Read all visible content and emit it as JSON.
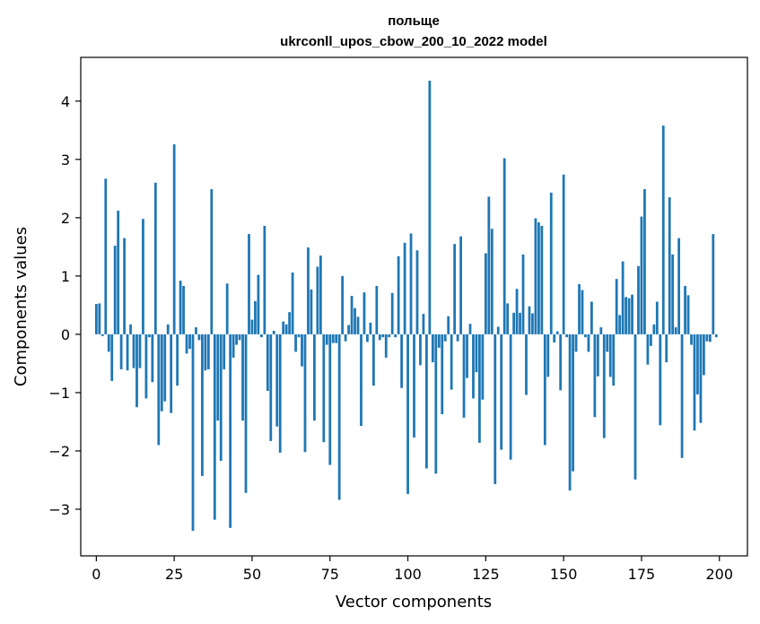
{
  "chart_data": {
    "type": "bar",
    "title": "польще",
    "subtitle": "ukrconll_upos_cbow_200_10_2022 model",
    "xlabel": "Vector components",
    "ylabel": "Components values",
    "xlim": [
      -5,
      209
    ],
    "ylim": [
      -3.8,
      4.75
    ],
    "xticks": [
      0,
      25,
      50,
      75,
      100,
      125,
      150,
      175,
      200
    ],
    "xtick_labels": [
      "0",
      "25",
      "50",
      "75",
      "100",
      "125",
      "150",
      "175",
      "200"
    ],
    "yticks": [
      -3,
      -2,
      -1,
      0,
      1,
      2,
      3,
      4
    ],
    "ytick_labels": [
      "−3",
      "−2",
      "−1",
      "0",
      "1",
      "2",
      "3",
      "4"
    ],
    "bar_color": "#1f77b4",
    "grid": false,
    "x": [
      0,
      1,
      2,
      3,
      4,
      5,
      6,
      7,
      8,
      9,
      10,
      11,
      12,
      13,
      14,
      15,
      16,
      17,
      18,
      19,
      20,
      21,
      22,
      23,
      24,
      25,
      26,
      27,
      28,
      29,
      30,
      31,
      32,
      33,
      34,
      35,
      36,
      37,
      38,
      39,
      40,
      41,
      42,
      43,
      44,
      45,
      46,
      47,
      48,
      49,
      50,
      51,
      52,
      53,
      54,
      55,
      56,
      57,
      58,
      59,
      60,
      61,
      62,
      63,
      64,
      65,
      66,
      67,
      68,
      69,
      70,
      71,
      72,
      73,
      74,
      75,
      76,
      77,
      78,
      79,
      80,
      81,
      82,
      83,
      84,
      85,
      86,
      87,
      88,
      89,
      90,
      91,
      92,
      93,
      94,
      95,
      96,
      97,
      98,
      99,
      100,
      101,
      102,
      103,
      104,
      105,
      106,
      107,
      108,
      109,
      110,
      111,
      112,
      113,
      114,
      115,
      116,
      117,
      118,
      119,
      120,
      121,
      122,
      123,
      124,
      125,
      126,
      127,
      128,
      129,
      130,
      131,
      132,
      133,
      134,
      135,
      136,
      137,
      138,
      139,
      140,
      141,
      142,
      143,
      144,
      145,
      146,
      147,
      148,
      149,
      150,
      151,
      152,
      153,
      154,
      155,
      156,
      157,
      158,
      159,
      160,
      161,
      162,
      163,
      164,
      165,
      166,
      167,
      168,
      169,
      170,
      171,
      172,
      173,
      174,
      175,
      176,
      177,
      178,
      179,
      180,
      181,
      182,
      183,
      184,
      185,
      186,
      187,
      188,
      189,
      190,
      191,
      192,
      193,
      194,
      195,
      196,
      197,
      198,
      199
    ],
    "values": [
      0.52,
      0.53,
      -0.03,
      2.67,
      -0.3,
      -0.8,
      1.52,
      2.12,
      -0.6,
      1.65,
      -0.62,
      0.17,
      -0.58,
      -1.25,
      -0.58,
      1.98,
      -1.1,
      -0.05,
      -0.82,
      2.6,
      -1.9,
      -1.32,
      -1.15,
      0.17,
      -1.35,
      3.26,
      -0.88,
      0.92,
      0.83,
      -0.33,
      -0.25,
      -3.37,
      0.12,
      -0.1,
      -2.43,
      -0.62,
      -0.6,
      2.49,
      -3.18,
      -1.48,
      -2.17,
      -0.6,
      0.87,
      -3.32,
      -0.4,
      -0.18,
      -0.1,
      -1.48,
      -2.72,
      1.72,
      0.25,
      0.57,
      1.02,
      -0.05,
      1.86,
      -0.97,
      -1.83,
      0.06,
      -1.58,
      -2.03,
      0.22,
      0.17,
      0.38,
      1.06,
      -0.3,
      -0.05,
      -0.55,
      -2.02,
      1.49,
      0.77,
      -1.48,
      1.16,
      1.35,
      -1.85,
      -0.18,
      -2.24,
      -0.15,
      -0.15,
      -2.84,
      1.0,
      -0.12,
      0.16,
      0.66,
      0.45,
      0.3,
      -1.57,
      0.72,
      -0.13,
      0.2,
      -0.88,
      0.83,
      -0.1,
      -0.05,
      -0.4,
      -0.05,
      0.71,
      -0.05,
      1.34,
      -0.92,
      1.57,
      -2.74,
      1.73,
      -1.77,
      1.44,
      -0.53,
      0.35,
      -2.3,
      4.35,
      -0.48,
      -2.39,
      -0.23,
      -1.37,
      -0.12,
      0.31,
      -0.95,
      1.55,
      -0.12,
      1.68,
      -1.43,
      -0.75,
      0.18,
      -1.1,
      -0.65,
      -1.86,
      -1.12,
      1.39,
      2.36,
      1.81,
      -2.57,
      0.13,
      -1.98,
      3.02,
      0.53,
      -2.15,
      0.37,
      0.78,
      0.37,
      1.37,
      -1.04,
      0.48,
      0.36,
      1.99,
      1.92,
      1.86,
      -1.9,
      -0.73,
      2.43,
      -0.14,
      0.05,
      -0.96,
      2.74,
      -0.05,
      -2.68,
      -2.35,
      -0.3,
      0.86,
      0.76,
      -0.05,
      -0.3,
      0.56,
      -1.42,
      -0.72,
      0.12,
      -1.78,
      -0.3,
      -0.73,
      -0.88,
      0.95,
      0.33,
      1.25,
      0.64,
      0.62,
      0.68,
      -2.49,
      1.17,
      2.02,
      2.49,
      -0.52,
      -0.2,
      0.17,
      0.56,
      -1.56,
      3.58,
      -0.48,
      2.35,
      1.37,
      0.12,
      1.65,
      -2.12,
      0.83,
      0.67,
      -0.18,
      -1.65,
      -1.03,
      -1.52,
      -0.7,
      -0.12,
      -0.13,
      1.72,
      -0.05
    ]
  }
}
